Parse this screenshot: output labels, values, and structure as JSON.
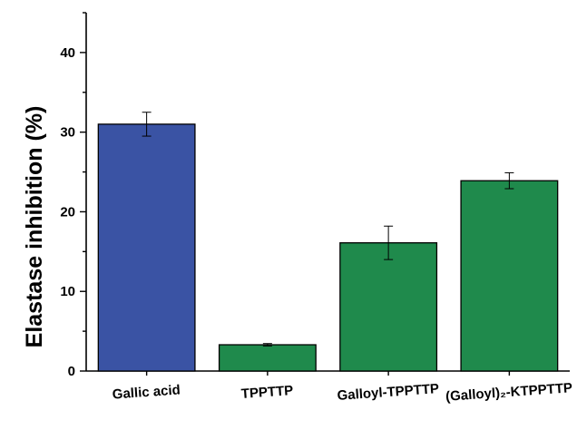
{
  "chart_data": {
    "type": "bar",
    "ylabel": "Elastase inhibition (%)",
    "ylim": [
      0,
      45
    ],
    "yticks": [
      0,
      10,
      20,
      30,
      40
    ],
    "categories": [
      "Gallic acid",
      "TPPTTP",
      "Galloyl-TPPTTP",
      "(Galloyl)₂-KTPPTTP"
    ],
    "values": [
      31.0,
      3.3,
      16.1,
      23.9
    ],
    "errors": [
      1.5,
      0.15,
      2.1,
      1.0
    ],
    "colors": [
      "#3a53a4",
      "#1f8a4c",
      "#1f8a4c",
      "#1f8a4c"
    ],
    "grid": false,
    "legend": false
  }
}
